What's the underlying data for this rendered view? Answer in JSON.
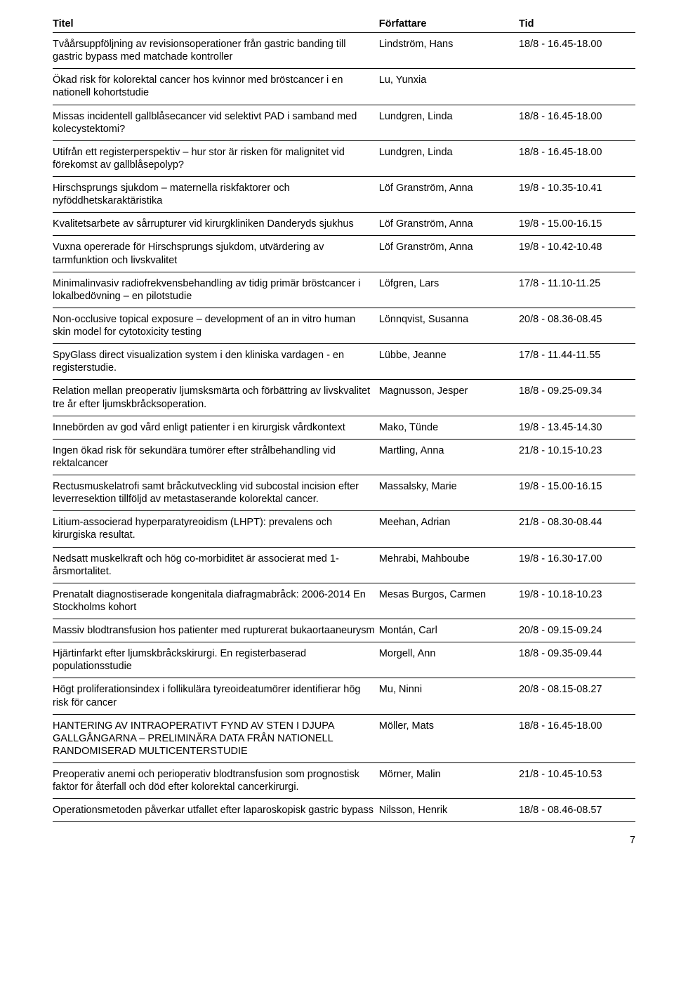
{
  "columns": {
    "title": "Titel",
    "author": "Författare",
    "time": "Tid"
  },
  "rows": [
    {
      "title": "Tvåårsuppföljning av revisionsoperationer från gastric banding till gastric bypass med matchade kontroller",
      "author": "Lindström, Hans",
      "time": "18/8 - 16.45-18.00"
    },
    {
      "title": "Ökad risk för kolorektal cancer hos kvinnor med bröstcancer i en nationell kohortstudie",
      "author": "Lu, Yunxia",
      "time": ""
    },
    {
      "title": "Missas incidentell gallblåsecancer vid selektivt PAD i samband med kolecystektomi?",
      "author": "Lundgren, Linda",
      "time": "18/8 - 16.45-18.00"
    },
    {
      "title": "Utifrån ett registerperspektiv – hur stor är risken för malignitet vid förekomst av gallblåsepolyp?",
      "author": "Lundgren, Linda",
      "time": "18/8 - 16.45-18.00"
    },
    {
      "title": "Hirschsprungs sjukdom – maternella riskfaktorer och nyföddhetskaraktäristika",
      "author": "Löf Granström, Anna",
      "time": "19/8 - 10.35-10.41"
    },
    {
      "title": "Kvalitetsarbete av sårrupturer vid kirurgkliniken Danderyds sjukhus",
      "author": "Löf Granström, Anna",
      "time": "19/8 - 15.00-16.15"
    },
    {
      "title": "Vuxna opererade för Hirschsprungs sjukdom, utvärdering av tarmfunktion och livskvalitet",
      "author": "Löf Granström, Anna",
      "time": "19/8 - 10.42-10.48"
    },
    {
      "title": "Minimalinvasiv radiofrekvensbehandling av tidig primär bröstcancer i lokalbedövning – en pilotstudie",
      "author": "Löfgren, Lars",
      "time": "17/8 - 11.10-11.25"
    },
    {
      "title": "Non-occlusive topical exposure – development of an in vitro human skin model for cytotoxicity testing",
      "author": "Lönnqvist, Susanna",
      "time": "20/8 - 08.36-08.45"
    },
    {
      "title": "SpyGlass direct visualization system i den kliniska vardagen - en registerstudie.",
      "author": "Lübbe, Jeanne",
      "time": "17/8 - 11.44-11.55"
    },
    {
      "title": "Relation mellan preoperativ ljumsksmärta och förbättring av livskvalitet tre år efter ljumskbråcksoperation.",
      "author": "Magnusson, Jesper",
      "time": "18/8 - 09.25-09.34"
    },
    {
      "title": "Innebörden av god vård enligt patienter i en kirurgisk vårdkontext",
      "author": "Mako, Tünde",
      "time": "19/8 - 13.45-14.30"
    },
    {
      "title": "Ingen ökad risk för sekundära tumörer efter strålbehandling vid rektalcancer",
      "author": "Martling, Anna",
      "time": "21/8 - 10.15-10.23"
    },
    {
      "title": "Rectusmuskelatrofi samt bråckutveckling vid subcostal incision efter leverresektion tillföljd av metastaserande kolorektal cancer.",
      "author": "Massalsky, Marie",
      "time": "19/8 - 15.00-16.15"
    },
    {
      "title": "Litium-associerad hyperparatyreoidism (LHPT): prevalens och kirurgiska resultat.",
      "author": "Meehan, Adrian",
      "time": "21/8 - 08.30-08.44"
    },
    {
      "title": "Nedsatt muskelkraft och hög co-morbiditet är associerat med 1-årsmortalitet.",
      "author": "Mehrabi, Mahboube",
      "time": "19/8 - 16.30-17.00"
    },
    {
      "title": "Prenatalt diagnostiserade kongenitala diafragmabråck: 2006-2014 En Stockholms kohort",
      "author": "Mesas Burgos, Carmen",
      "time": "19/8 - 10.18-10.23"
    },
    {
      "title": "Massiv blodtransfusion hos patienter med rupturerat bukaortaaneurysm",
      "author": "Montán, Carl",
      "time": "20/8 - 09.15-09.24"
    },
    {
      "title": "Hjärtinfarkt efter ljumskbråckskirurgi. En registerbaserad populationsstudie",
      "author": "Morgell, Ann",
      "time": "18/8 - 09.35-09.44"
    },
    {
      "title": "Högt proliferationsindex i follikulära tyreoideatumörer identifierar hög risk för cancer",
      "author": "Mu, Ninni",
      "time": "20/8 - 08.15-08.27"
    },
    {
      "title": "HANTERING AV INTRAOPERATIVT FYND AV STEN I DJUPA GALLGÅNGARNA – PRELIMINÄRA DATA FRÅN NATIONELL RANDOMISERAD MULTICENTERSTUDIE",
      "author": "Möller, Mats",
      "time": "18/8 - 16.45-18.00"
    },
    {
      "title": "Preoperativ anemi och perioperativ blodtransfusion som prognostisk faktor för återfall och död efter kolorektal cancerkirurgi.",
      "author": "Mörner, Malin",
      "time": "21/8 - 10.45-10.53"
    },
    {
      "title": "Operationsmetoden påverkar utfallet efter laparoskopisk gastric bypass",
      "author": "Nilsson, Henrik",
      "time": "18/8 - 08.46-08.57"
    }
  ],
  "pageNumber": "7"
}
